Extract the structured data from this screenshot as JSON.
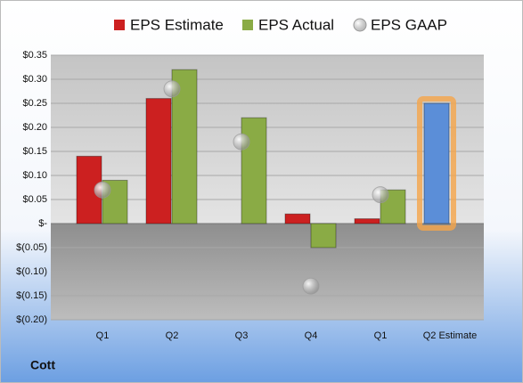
{
  "chart_data": {
    "type": "bar",
    "company": "Cott",
    "categories": [
      "Q1",
      "Q2",
      "Q3",
      "Q4",
      "Q1",
      "Q2 Estimate"
    ],
    "series": [
      {
        "name": "EPS Estimate",
        "color": "#cc2020",
        "colors": [
          "#cc2020",
          "#cc2020",
          "#cc2020",
          "#cc2020",
          "#cc2020",
          "#5b8ed8"
        ],
        "values": [
          0.14,
          0.26,
          null,
          0.02,
          0.01,
          0.25
        ]
      },
      {
        "name": "EPS Actual",
        "color": "#8aab45",
        "values": [
          0.09,
          0.32,
          0.22,
          -0.05,
          0.07,
          null
        ]
      },
      {
        "name": "EPS GAAP",
        "color": "#9a9a9a",
        "marker": "circle",
        "values": [
          0.07,
          0.28,
          0.17,
          -0.13,
          0.06,
          null
        ]
      }
    ],
    "highlight_color": "#f5a54a",
    "ylim": [
      -0.2,
      0.35
    ],
    "yticks": [
      {
        "value": -0.2,
        "label": "$(0.20)"
      },
      {
        "value": -0.15,
        "label": "$(0.15)"
      },
      {
        "value": -0.1,
        "label": "$(0.10)"
      },
      {
        "value": -0.05,
        "label": "$(0.05)"
      },
      {
        "value": 0,
        "label": "$-"
      },
      {
        "value": 0.05,
        "label": "$0.05"
      },
      {
        "value": 0.1,
        "label": "$0.10"
      },
      {
        "value": 0.15,
        "label": "$0.15"
      },
      {
        "value": 0.2,
        "label": "$0.20"
      },
      {
        "value": 0.25,
        "label": "$0.25"
      },
      {
        "value": 0.3,
        "label": "$0.30"
      },
      {
        "value": 0.35,
        "label": "$0.35"
      }
    ],
    "grid": true
  }
}
